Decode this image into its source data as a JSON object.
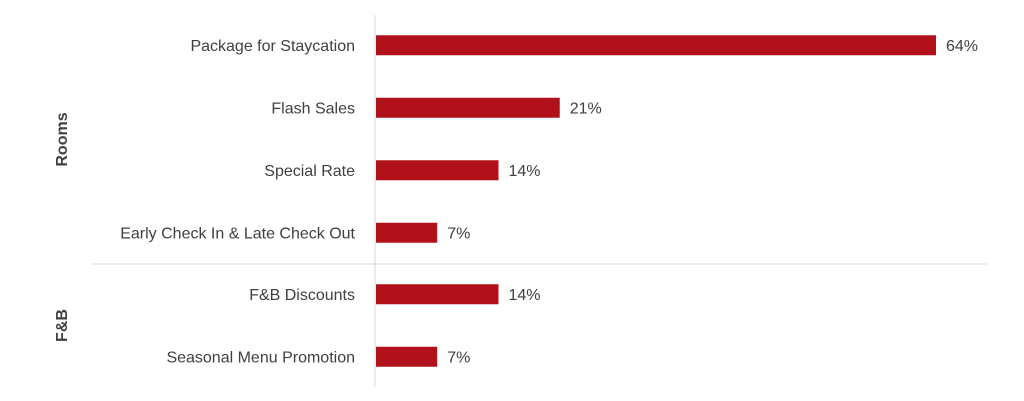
{
  "chart_data": {
    "type": "bar",
    "orientation": "horizontal",
    "groups": [
      {
        "name": "Rooms",
        "categories": [
          "Package for Staycation",
          "Flash Sales",
          "Special Rate",
          "Early Check In & Late Check Out"
        ]
      },
      {
        "name": "F&B",
        "categories": [
          "F&B Discounts",
          "Seasonal Menu Promotion"
        ]
      }
    ],
    "categories": [
      "Package for Staycation",
      "Flash Sales",
      "Special Rate",
      "Early Check In & Late Check Out",
      "F&B Discounts",
      "Seasonal Menu Promotion"
    ],
    "values": [
      64,
      21,
      14,
      7,
      14,
      7
    ],
    "value_labels": [
      "64%",
      "21%",
      "14%",
      "7%",
      "14%",
      "7%"
    ],
    "unit": "%",
    "xlim": [
      0,
      64
    ],
    "title": "",
    "xlabel": "",
    "ylabel": "",
    "grid": false,
    "legend": "none",
    "colors": {
      "bar": "#B0111B",
      "text": "#404040",
      "axis": "#D9D9D9"
    }
  }
}
